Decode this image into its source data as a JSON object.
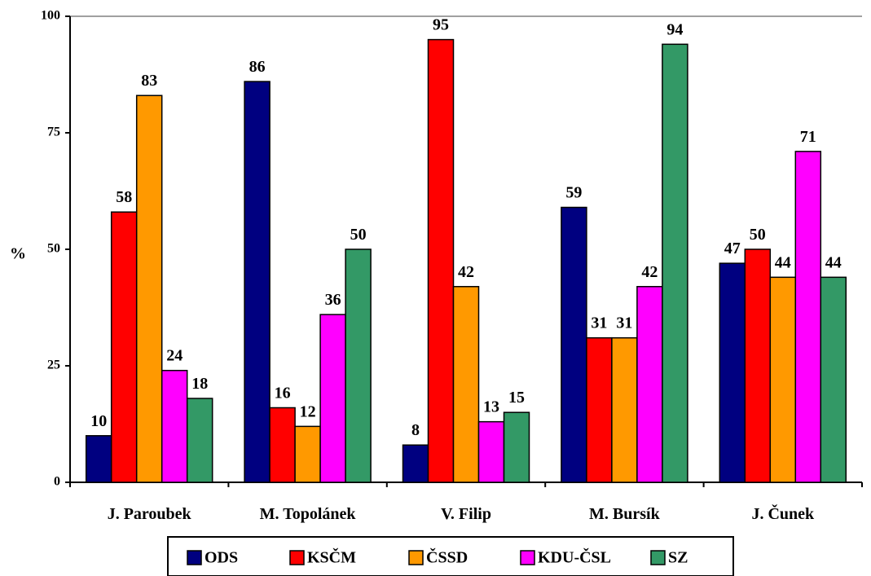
{
  "chart_data": {
    "type": "bar",
    "title": "",
    "xlabel": "",
    "ylabel": "%",
    "ylim": [
      0,
      100
    ],
    "yticks": [
      0,
      25,
      50,
      75,
      100
    ],
    "grid": false,
    "legend_position": "bottom",
    "categories": [
      "J. Paroubek",
      "M. Topolánek",
      "V. Filip",
      "M. Bursík",
      "J. Čunek"
    ],
    "series": [
      {
        "name": "ODS",
        "color": "#000080",
        "values": [
          10,
          86,
          8,
          59,
          47
        ]
      },
      {
        "name": "KSČM",
        "color": "#ff0000",
        "values": [
          58,
          16,
          95,
          31,
          50
        ]
      },
      {
        "name": "ČSSD",
        "color": "#ff9900",
        "values": [
          83,
          12,
          42,
          31,
          44
        ]
      },
      {
        "name": "KDU-ČSL",
        "color": "#ff00ff",
        "values": [
          24,
          36,
          13,
          42,
          71
        ]
      },
      {
        "name": "SZ",
        "color": "#339966",
        "values": [
          18,
          50,
          15,
          94,
          44
        ]
      }
    ]
  }
}
